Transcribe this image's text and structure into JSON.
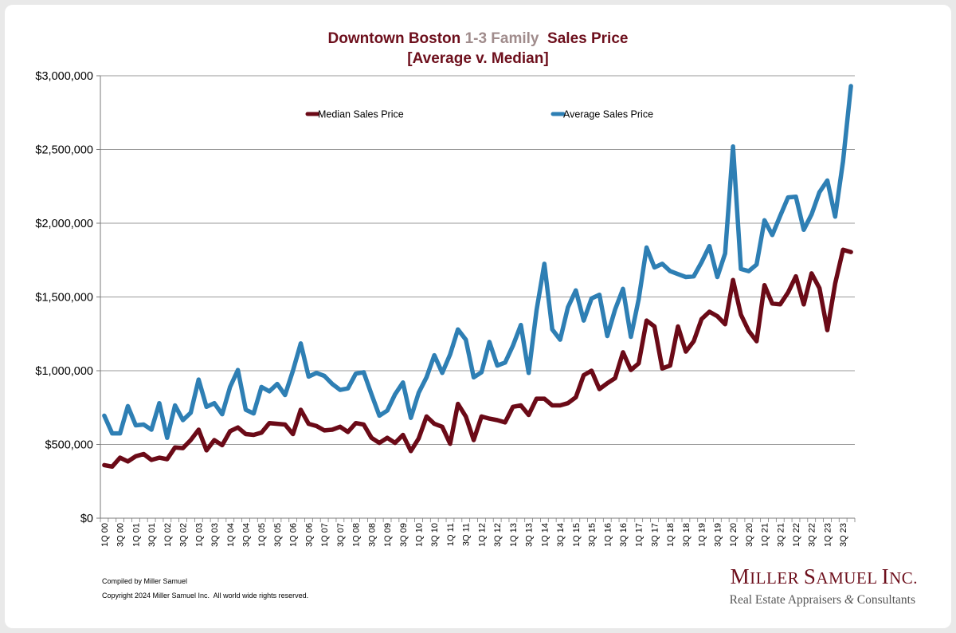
{
  "chart_data": {
    "type": "line",
    "title_part1": "Downtown Boston ",
    "title_part2": "1-3 Family",
    "title_part3": "  Sales Price",
    "subtitle": "[Average v. Median]",
    "ylim": [
      0,
      3000000
    ],
    "yticks": [
      "$0",
      "$500,000",
      "$1,000,000",
      "$1,500,000",
      "$2,000,000",
      "$2,500,000",
      "$3,000,000"
    ],
    "legend_position": "top",
    "grid": "horizontal",
    "x": [
      "1Q 00",
      "2Q 00",
      "3Q 00",
      "4Q 00",
      "1Q 01",
      "2Q 01",
      "3Q 01",
      "4Q 01",
      "1Q 02",
      "2Q 02",
      "3Q 02",
      "4Q 02",
      "1Q 03",
      "2Q 03",
      "3Q 03",
      "4Q 03",
      "1Q 04",
      "2Q 04",
      "3Q 04",
      "4Q 04",
      "1Q 05",
      "2Q 05",
      "3Q 05",
      "4Q 05",
      "1Q 06",
      "2Q 06",
      "3Q 06",
      "4Q 06",
      "1Q 07",
      "2Q 07",
      "3Q 07",
      "4Q 07",
      "1Q 08",
      "2Q 08",
      "3Q 08",
      "4Q 08",
      "1Q 09",
      "2Q 09",
      "3Q 09",
      "4Q 09",
      "1Q 10",
      "2Q 10",
      "3Q 10",
      "4Q 10",
      "1Q 11",
      "2Q 11",
      "3Q 11",
      "4Q 11",
      "1Q 12",
      "2Q 12",
      "3Q 12",
      "4Q 12",
      "1Q 13",
      "2Q 13",
      "3Q 13",
      "4Q 13",
      "1Q 14",
      "2Q 14",
      "3Q 14",
      "4Q 14",
      "1Q 15",
      "2Q 15",
      "3Q 15",
      "4Q 15",
      "1Q 16",
      "2Q 16",
      "3Q 16",
      "4Q 16",
      "1Q 17",
      "2Q 17",
      "3Q 17",
      "4Q 17",
      "1Q 18",
      "2Q 18",
      "3Q 18",
      "4Q 18",
      "1Q 19",
      "2Q 19",
      "3Q 19",
      "4Q 19",
      "1Q 20",
      "2Q 20",
      "3Q 20",
      "4Q 20",
      "1Q 21",
      "2Q 21",
      "3Q 21",
      "4Q 21",
      "1Q 22",
      "2Q 22",
      "3Q 22",
      "4Q 22",
      "1Q 23",
      "2Q 23",
      "3Q 23",
      "4Q 23"
    ],
    "x_tick_labels_shown_every": 2,
    "series": [
      {
        "name": "Median Sales Price",
        "color": "#6b0a17",
        "values": [
          360000,
          350000,
          410000,
          385000,
          420000,
          435000,
          395000,
          410000,
          400000,
          480000,
          475000,
          530000,
          600000,
          460000,
          530000,
          495000,
          590000,
          615000,
          570000,
          565000,
          580000,
          645000,
          640000,
          635000,
          570000,
          735000,
          640000,
          625000,
          595000,
          600000,
          620000,
          585000,
          645000,
          635000,
          545000,
          510000,
          545000,
          510000,
          565000,
          455000,
          540000,
          690000,
          640000,
          620000,
          505000,
          775000,
          690000,
          530000,
          690000,
          675000,
          665000,
          650000,
          755000,
          765000,
          700000,
          810000,
          810000,
          765000,
          765000,
          780000,
          820000,
          970000,
          1000000,
          875000,
          915000,
          950000,
          1125000,
          1005000,
          1050000,
          1340000,
          1300000,
          1015000,
          1035000,
          1300000,
          1130000,
          1200000,
          1350000,
          1400000,
          1370000,
          1315000,
          1615000,
          1380000,
          1270000,
          1200000,
          1580000,
          1455000,
          1450000,
          1530000,
          1640000,
          1450000,
          1660000,
          1560000,
          1275000,
          1590000,
          1820000,
          1805000
        ]
      },
      {
        "name": "Average Sales Price",
        "color": "#2e7fb4",
        "values": [
          695000,
          575000,
          575000,
          760000,
          630000,
          635000,
          600000,
          780000,
          545000,
          765000,
          665000,
          715000,
          940000,
          755000,
          780000,
          705000,
          890000,
          1005000,
          735000,
          710000,
          890000,
          860000,
          910000,
          835000,
          1000000,
          1185000,
          960000,
          985000,
          965000,
          910000,
          870000,
          880000,
          980000,
          990000,
          840000,
          695000,
          730000,
          840000,
          920000,
          680000,
          850000,
          955000,
          1105000,
          985000,
          1110000,
          1280000,
          1210000,
          955000,
          990000,
          1195000,
          1035000,
          1055000,
          1170000,
          1310000,
          985000,
          1410000,
          1725000,
          1280000,
          1210000,
          1430000,
          1545000,
          1340000,
          1490000,
          1515000,
          1235000,
          1415000,
          1555000,
          1230000,
          1485000,
          1835000,
          1700000,
          1725000,
          1675000,
          1655000,
          1635000,
          1640000,
          1735000,
          1845000,
          1635000,
          1795000,
          2520000,
          1690000,
          1675000,
          1720000,
          2020000,
          1920000,
          2050000,
          2175000,
          2180000,
          1955000,
          2060000,
          2210000,
          2290000,
          2045000,
          2420000,
          2930000
        ]
      }
    ]
  },
  "footer": {
    "compiled": "Compiled by Miller Samuel",
    "copyright": "Copyright 2024 Miller Samuel Inc.  All world wide rights reserved."
  },
  "logo": {
    "name_initial_1": "M",
    "name_rest_1": "ILLER ",
    "name_initial_2": "S",
    "name_rest_2": "AMUEL ",
    "name_initial_3": "I",
    "name_rest_3": "NC.",
    "tagline_part1": "Real Estate Appraisers ",
    "tagline_amp": "&",
    "tagline_part2": " Consultants"
  }
}
